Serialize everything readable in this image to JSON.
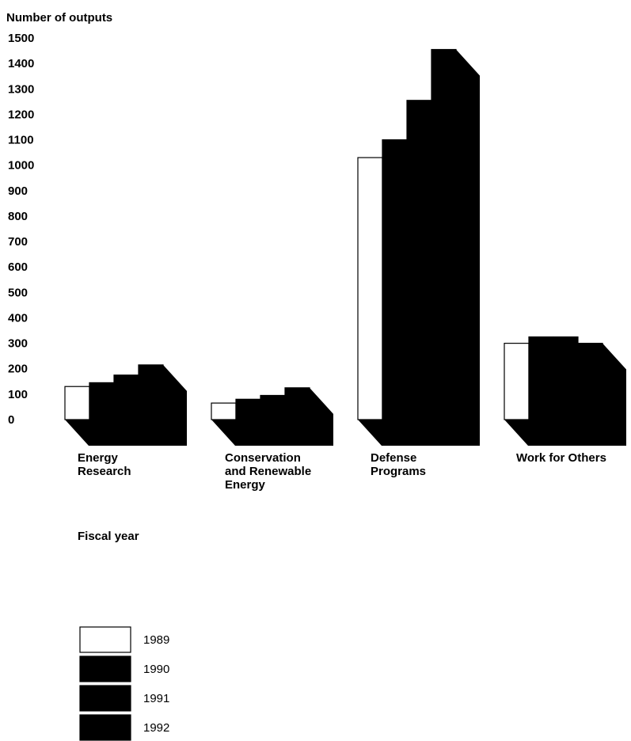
{
  "chart_data": {
    "type": "bar",
    "ylabel": "Number of outputs",
    "xlabel": "Fiscal year",
    "ylim": [
      0,
      1500
    ],
    "yticks": [
      "0",
      "100",
      "200",
      "300",
      "400",
      "500",
      "600",
      "700",
      "800",
      "900",
      "1000",
      "1100",
      "1200",
      "1300",
      "1400",
      "1500"
    ],
    "grid": false,
    "categories": [
      [
        "Energy",
        "Research"
      ],
      [
        "Conservation",
        "and Renewable",
        "Energy"
      ],
      [
        "Defense",
        "Programs"
      ],
      [
        "Work for Others"
      ]
    ],
    "series": [
      {
        "name": "1989",
        "color": "#ffffff",
        "values": [
          130,
          65,
          1030,
          300
        ]
      },
      {
        "name": "1990",
        "color": "#000000",
        "values": [
          145,
          80,
          1100,
          325
        ]
      },
      {
        "name": "1991",
        "color": "#000000",
        "values": [
          175,
          95,
          1255,
          325
        ]
      },
      {
        "name": "1992",
        "color": "#000000",
        "values": [
          215,
          125,
          1455,
          300
        ]
      }
    ],
    "legend_position": "bottom-left"
  }
}
